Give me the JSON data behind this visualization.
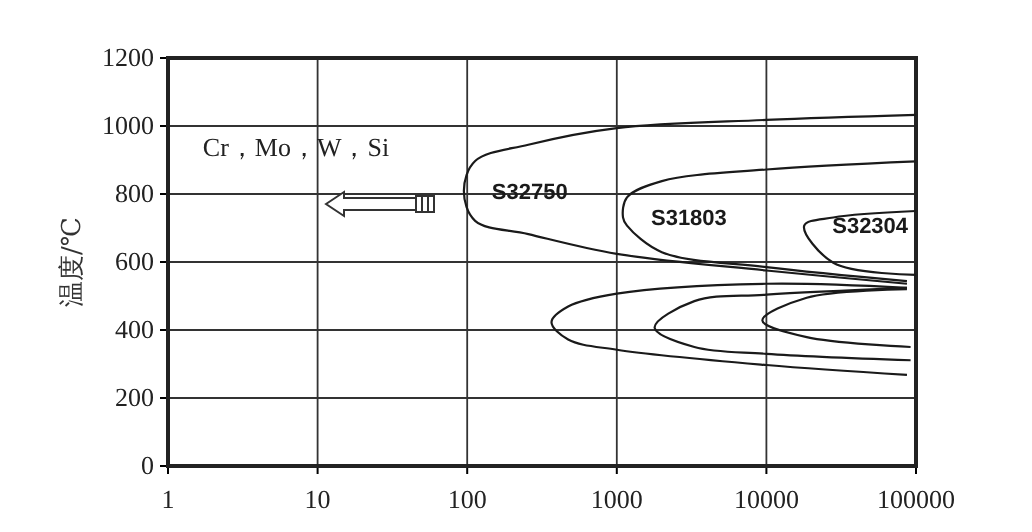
{
  "chart_data": {
    "type": "line",
    "ylabel": "温度/℃",
    "log": "x",
    "xlim": [
      1,
      100000
    ],
    "xticks": [
      1,
      10,
      100,
      1000,
      10000,
      100000
    ],
    "ylim": [
      0,
      1200
    ],
    "yticks": [
      0,
      200,
      400,
      600,
      800,
      1000,
      1200
    ],
    "grid": true,
    "marker": "none",
    "line_style": "solid",
    "series": [
      {
        "name": "S32750",
        "color": "#1a1a1a",
        "x": [
          100000,
          10000,
          1000,
          256,
          113,
          95,
          113,
          256,
          1000,
          10000,
          87000
        ],
        "values": [
          1033,
          1018,
          994,
          945,
          897,
          809,
          721,
          682,
          624,
          575,
          536
        ]
      },
      {
        "name": "S31803",
        "color": "#1a1a1a",
        "x": [
          100000,
          10000,
          2000,
          1170,
          1100,
          1170,
          2000,
          10000,
          87000
        ],
        "values": [
          896,
          872,
          838,
          790,
          731,
          707,
          629,
          585,
          544
        ]
      },
      {
        "name": "S32304",
        "color": "#1a1a1a",
        "x": [
          100000,
          28000,
          17900,
          28000,
          100000
        ],
        "values": [
          750,
          731,
          707,
          598,
          562
        ]
      },
      {
        "color": "#1a1a1a",
        "x": [
          87000,
          10000,
          1000,
          473,
          366,
          473,
          1000,
          10000,
          87000
        ],
        "values": [
          524,
          536,
          507,
          469,
          423,
          372,
          342,
          297,
          268
        ]
      },
      {
        "color": "#1a1a1a",
        "x": [
          87000,
          10000,
          3300,
          1790,
          3300,
          10000,
          92000
        ],
        "values": [
          524,
          504,
          485,
          407,
          350,
          330,
          311
        ]
      },
      {
        "color": "#1a1a1a",
        "x": [
          87000,
          18600,
          9400,
          18600,
          92000
        ],
        "values": [
          520,
          495,
          428,
          379,
          350
        ]
      }
    ],
    "annotations": [
      "Cr，Mo，W，Si"
    ]
  }
}
